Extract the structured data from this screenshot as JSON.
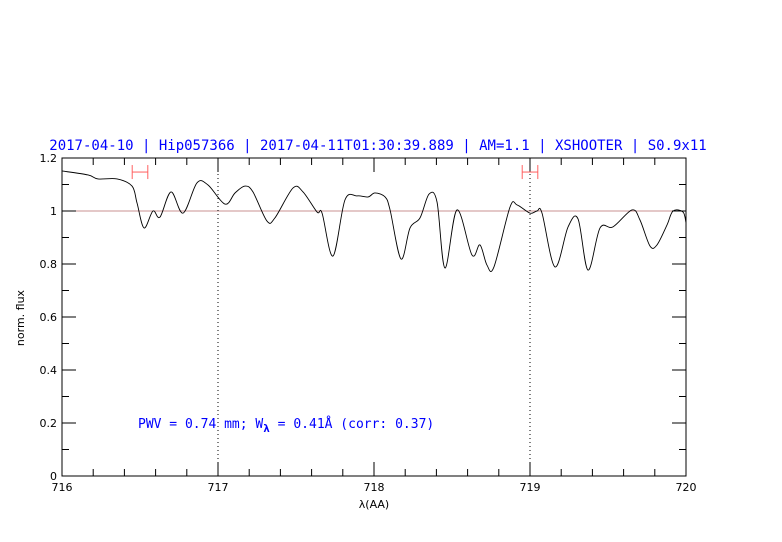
{
  "chart_data": {
    "type": "line",
    "title": "2017-04-10 | Hip057366 | 2017-04-11T01:30:39.889 | AM=1.1 | XSHOOTER | S0.9x11",
    "xlabel": "λ(AA)",
    "ylabel": "norm. flux",
    "xlim": [
      716,
      720
    ],
    "ylim": [
      0,
      1.2
    ],
    "x_ticks": [
      "716",
      "717",
      "718",
      "719",
      "720"
    ],
    "y_ticks": [
      "0",
      "0.2",
      "0.4",
      "0.6",
      "0.8",
      "1",
      "1.2"
    ],
    "reference_line_y": 1,
    "dotted_vertical_lines_x": [
      717,
      719
    ],
    "annotation": {
      "prefix": "PWV = 0.74 mm; W",
      "subscript": "λ",
      "suffix": " = 0.41Å (corr: 0.37)"
    },
    "error_bars": [
      {
        "x_min": 716.45,
        "x_max": 716.55,
        "y": 1.147
      },
      {
        "x_min": 718.95,
        "x_max": 719.05,
        "y": 1.147
      }
    ],
    "colors": {
      "title": "#0000ff",
      "line": "#000000",
      "reference": "#c89090",
      "error_bars": "#ff6060"
    },
    "series": [
      {
        "x": [
          716.0,
          716.167,
          716.231,
          716.353,
          716.449,
          716.481,
          716.526,
          716.583,
          716.628,
          716.699,
          716.776,
          716.865,
          716.936,
          717.045,
          717.109,
          717.173,
          717.224,
          717.314,
          717.365,
          717.481,
          717.545,
          717.635,
          717.667,
          717.737,
          717.814,
          717.891,
          717.962,
          718.006,
          718.071,
          718.103,
          718.173,
          718.231,
          718.295,
          718.353,
          718.404,
          718.455,
          718.532,
          718.628,
          718.679,
          718.724,
          718.769,
          718.872,
          718.917,
          719.0,
          719.045,
          719.077,
          719.16,
          719.244,
          719.308,
          719.372,
          719.449,
          719.532,
          719.654,
          719.705,
          719.769,
          719.814,
          719.878,
          719.917,
          719.981,
          720.0
        ],
        "y": [
          1.151,
          1.136,
          1.121,
          1.121,
          1.094,
          1.03,
          0.936,
          1.0,
          0.977,
          1.072,
          0.992,
          1.106,
          1.098,
          1.026,
          1.068,
          1.094,
          1.072,
          0.962,
          0.974,
          1.087,
          1.072,
          0.996,
          0.992,
          0.83,
          1.042,
          1.057,
          1.053,
          1.068,
          1.053,
          1.004,
          0.819,
          0.936,
          0.974,
          1.064,
          1.034,
          0.785,
          1.004,
          0.834,
          0.872,
          0.796,
          0.789,
          1.015,
          1.023,
          0.992,
          1.0,
          0.992,
          0.789,
          0.94,
          0.97,
          0.777,
          0.936,
          0.94,
          1.004,
          0.966,
          0.868,
          0.872,
          0.947,
          1.0,
          0.996,
          0.955
        ]
      }
    ]
  }
}
